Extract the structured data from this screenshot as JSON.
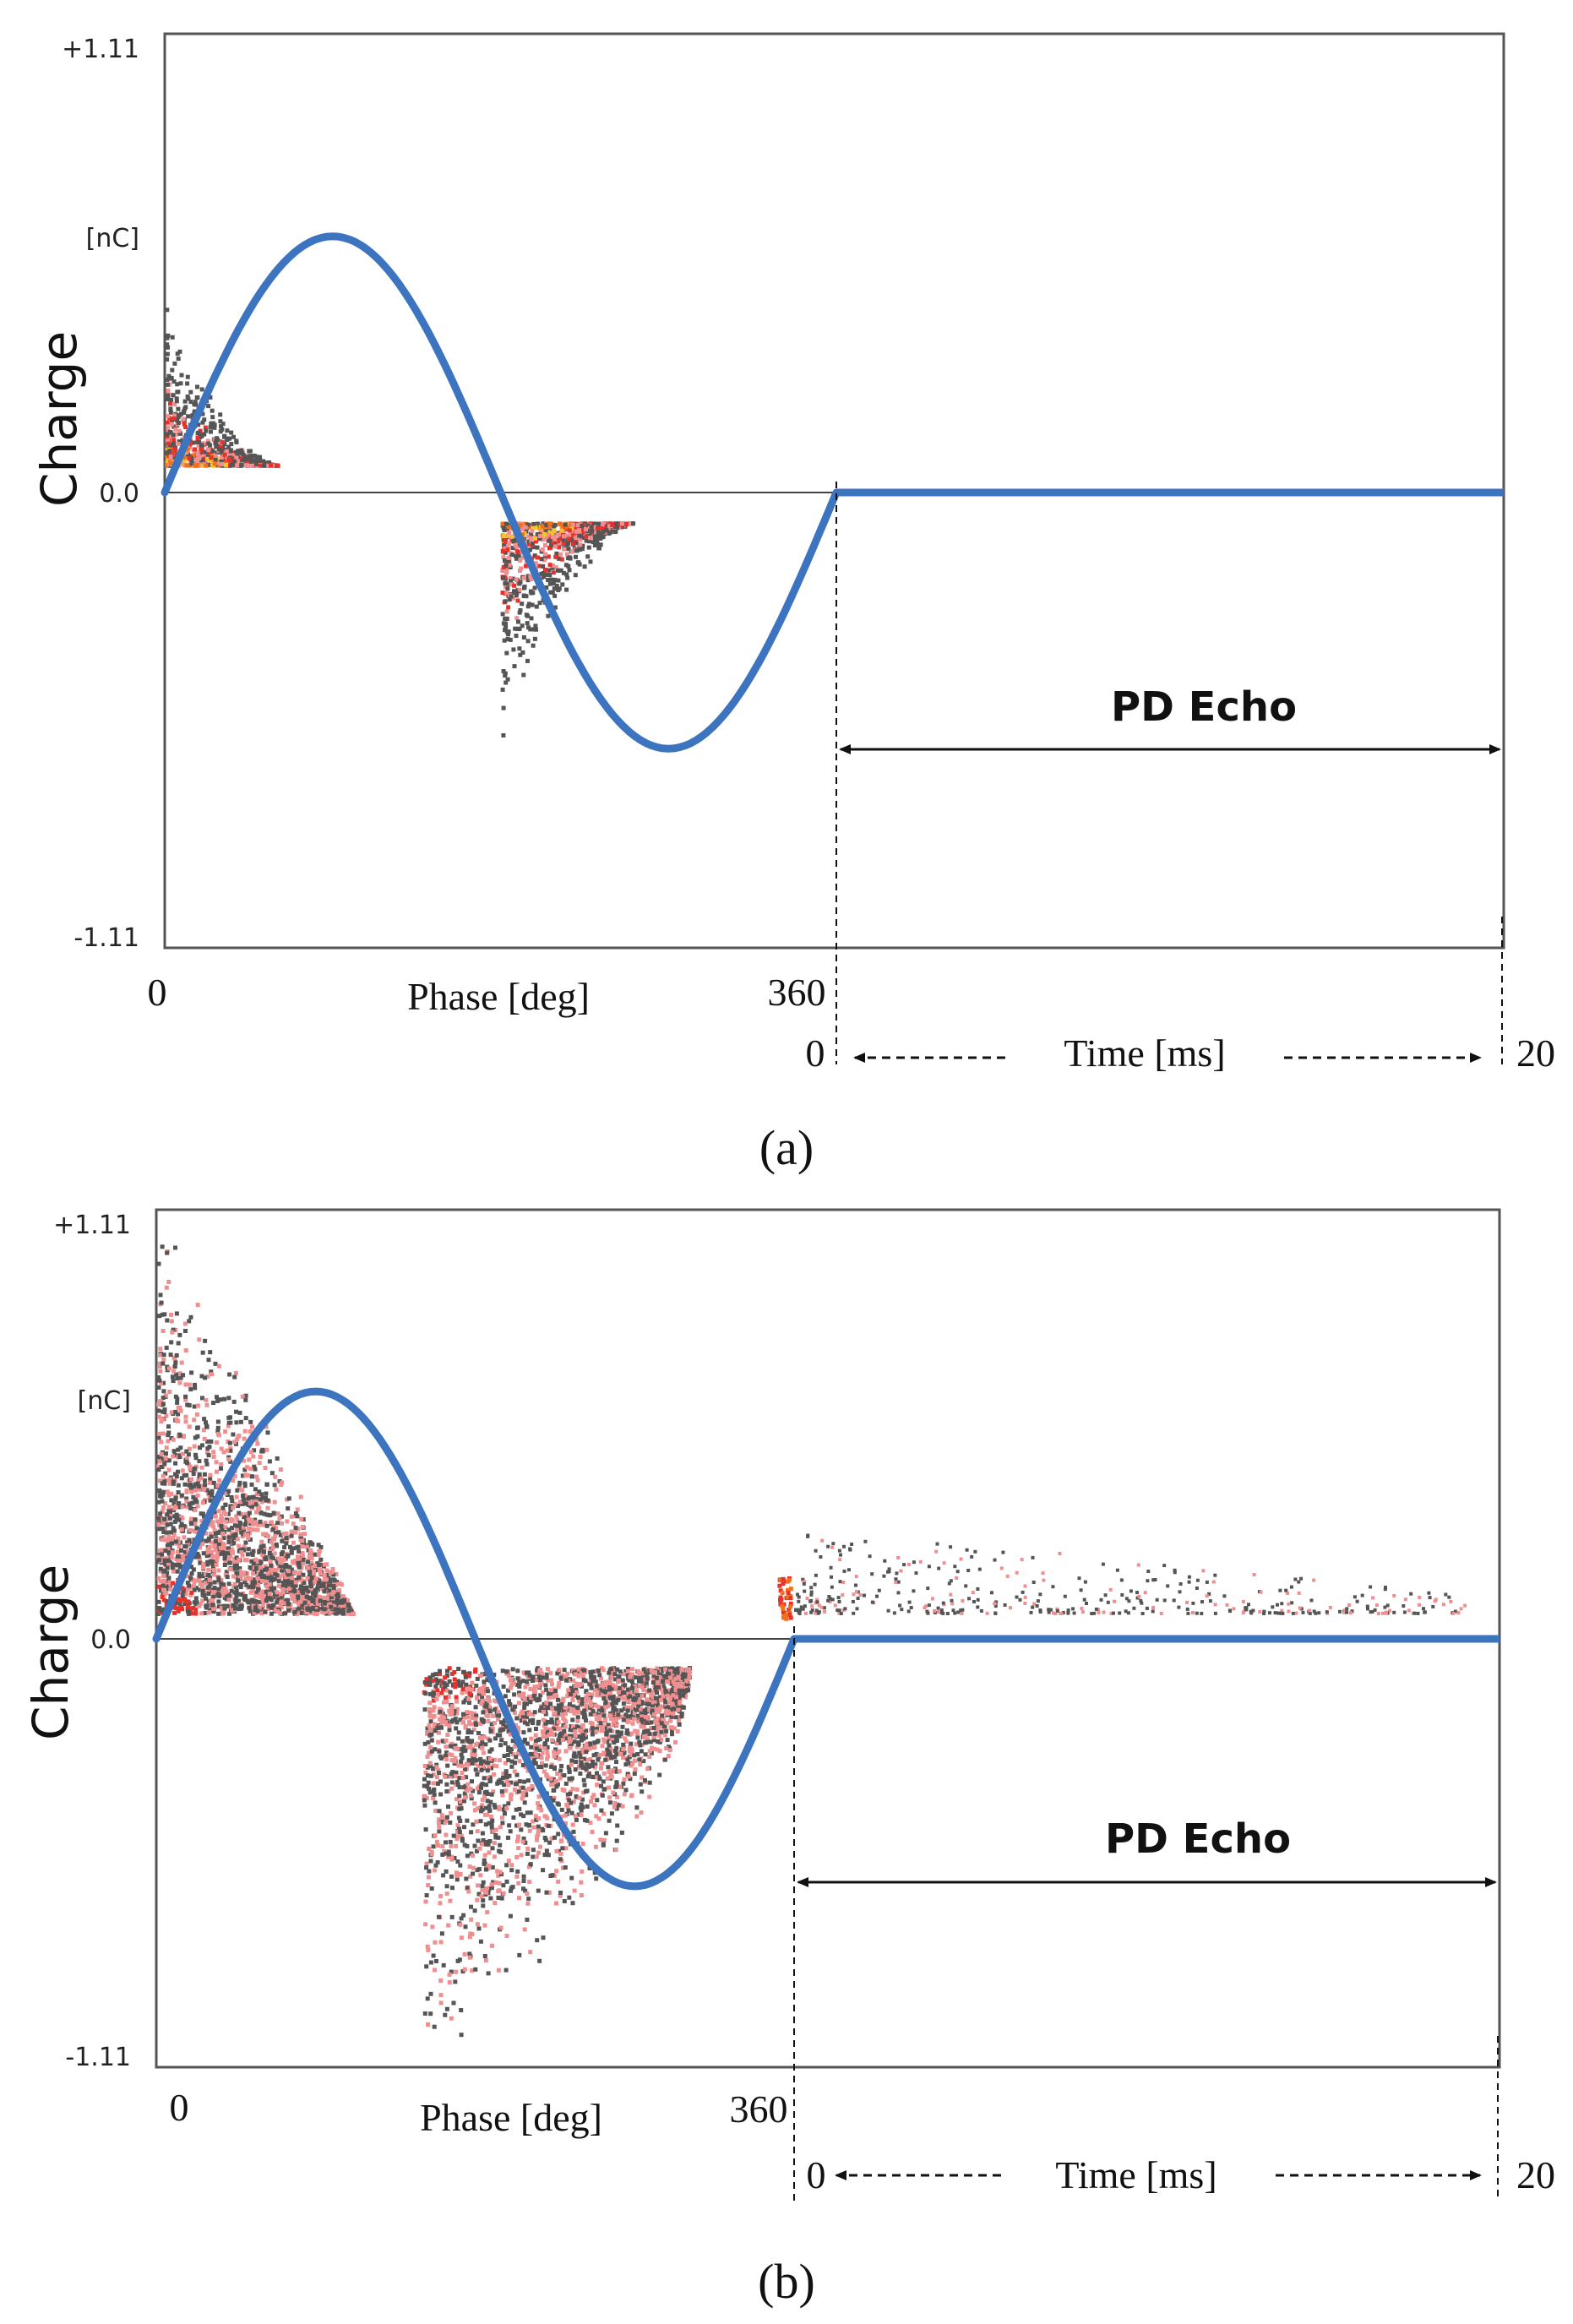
{
  "colors": {
    "curve": "#3d74c0",
    "frame": "#555555",
    "axis_text": "#222222",
    "dots_dark": "#555555",
    "dots_red": "#e8312a",
    "dots_pink": "#ef8f8f",
    "dots_orange": "#f0701c",
    "dots_yellow": "#f6c52b"
  },
  "chart_data": [
    {
      "type": "scatter",
      "panel_label": "(a)",
      "title": "",
      "ylabel": "Charge",
      "y_unit": "[nC]",
      "y_ticks": [
        "+1.11",
        "0.0",
        "-1.11"
      ],
      "ylim": [
        -1.11,
        1.11
      ],
      "phase_axis": {
        "label": "Phase [deg]",
        "start": "0",
        "end": "360",
        "range": [
          0,
          360
        ]
      },
      "time_axis": {
        "label": "Time [ms]",
        "start": "0",
        "end": "20",
        "range": [
          0,
          20
        ]
      },
      "echo_label": "PD Echo",
      "reference_curve": {
        "type": "sine",
        "amplitude": 0.62,
        "phase_range": [
          0,
          360
        ],
        "after_cycle": 0.0
      },
      "pd_clusters": [
        {
          "phase": [
            0,
            60
          ],
          "charge": [
            0.07,
            0.47
          ],
          "sign": "positive",
          "density": "high"
        },
        {
          "phase": [
            180,
            250
          ],
          "charge": [
            -0.07,
            -0.6
          ],
          "sign": "negative",
          "density": "high"
        }
      ],
      "echo_points": []
    },
    {
      "type": "scatter",
      "panel_label": "(b)",
      "title": "",
      "ylabel": "Charge",
      "y_unit": "[nC]",
      "y_ticks": [
        "+1.11",
        "0.0",
        "-1.11"
      ],
      "ylim": [
        -1.11,
        1.11
      ],
      "phase_axis": {
        "label": "Phase [deg]",
        "start": "0",
        "end": "360",
        "range": [
          0,
          360
        ]
      },
      "time_axis": {
        "label": "Time [ms]",
        "start": "0",
        "end": "20",
        "range": [
          0,
          20
        ]
      },
      "echo_label": "PD Echo",
      "reference_curve": {
        "type": "sine",
        "amplitude": 0.64,
        "phase_range": [
          0,
          360
        ],
        "after_cycle": 0.0
      },
      "pd_clusters": [
        {
          "phase": [
            0,
            110
          ],
          "charge": [
            0.07,
            1.11
          ],
          "sign": "positive",
          "density": "very high"
        },
        {
          "phase": [
            150,
            300
          ],
          "charge": [
            -0.07,
            -1.11
          ],
          "sign": "negative",
          "density": "very high"
        }
      ],
      "echo_points": [
        {
          "time": [
            0,
            19
          ],
          "charge": [
            0.07,
            0.3
          ],
          "density": "sparse, decaying"
        }
      ]
    }
  ]
}
